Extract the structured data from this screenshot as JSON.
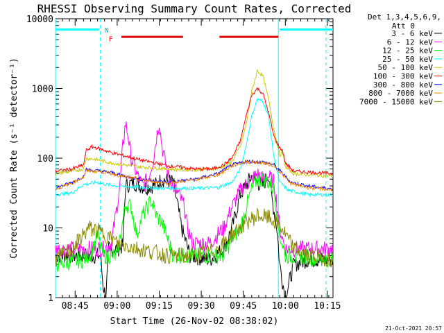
{
  "chart_data": {
    "type": "line",
    "title": "RHESSI Observing Summary Count Rates, Corrected",
    "xlabel": "Start Time (26-Nov-02 08:38:02)",
    "ylabel": "Corrected Count Rate (s⁻¹ detector⁻¹)",
    "yscale": "log",
    "ylim": [
      1,
      10000
    ],
    "xlim_minutes": [
      0,
      99
    ],
    "y_ticks": [
      {
        "value": 1,
        "label": "1"
      },
      {
        "value": 10,
        "label": "10"
      },
      {
        "value": 100,
        "label": "100"
      },
      {
        "value": 1000,
        "label": "1000"
      },
      {
        "value": 10000,
        "label": "10000"
      }
    ],
    "x_ticks": [
      {
        "minute": 7,
        "label": "08:45"
      },
      {
        "minute": 22,
        "label": "09:00"
      },
      {
        "minute": 37,
        "label": "09:15"
      },
      {
        "minute": 52,
        "label": "09:30"
      },
      {
        "minute": 67,
        "label": "09:45"
      },
      {
        "minute": 82,
        "label": "10:00"
      },
      {
        "minute": 97,
        "label": "10:15"
      }
    ],
    "legend_header": [
      "Det 1,3,4,5,6,9,",
      "Att 0"
    ],
    "legend_position": "right",
    "series": [
      {
        "name": "3 - 6 keV",
        "color": "#000000",
        "points": [
          [
            0,
            4
          ],
          [
            10,
            4
          ],
          [
            16,
            4
          ],
          [
            17,
            1.5
          ],
          [
            18,
            1
          ],
          [
            19,
            5
          ],
          [
            22,
            5
          ],
          [
            24,
            5.5
          ],
          [
            25,
            40
          ],
          [
            28,
            45
          ],
          [
            32,
            38
          ],
          [
            34,
            40
          ],
          [
            36,
            42
          ],
          [
            38,
            50
          ],
          [
            42,
            45
          ],
          [
            45,
            10
          ],
          [
            48,
            4
          ],
          [
            55,
            3.5
          ],
          [
            60,
            5
          ],
          [
            63,
            10
          ],
          [
            66,
            30
          ],
          [
            70,
            55
          ],
          [
            72,
            45
          ],
          [
            74,
            40
          ],
          [
            76,
            60
          ],
          [
            77,
            30
          ],
          [
            79,
            10
          ],
          [
            80,
            3
          ],
          [
            82,
            1
          ],
          [
            85,
            3
          ],
          [
            90,
            3.5
          ],
          [
            99,
            3.5
          ]
        ]
      },
      {
        "name": "6 - 12 keV",
        "color": "#ff00ff",
        "points": [
          [
            0,
            5
          ],
          [
            10,
            5
          ],
          [
            17,
            5
          ],
          [
            20,
            6
          ],
          [
            23,
            40
          ],
          [
            24,
            150
          ],
          [
            25,
            320
          ],
          [
            26,
            200
          ],
          [
            27,
            100
          ],
          [
            29,
            60
          ],
          [
            31,
            40
          ],
          [
            33,
            50
          ],
          [
            35,
            100
          ],
          [
            36,
            200
          ],
          [
            37,
            330
          ],
          [
            38,
            150
          ],
          [
            40,
            60
          ],
          [
            42,
            40
          ],
          [
            44,
            30
          ],
          [
            46,
            20
          ],
          [
            47,
            10
          ],
          [
            49,
            6
          ],
          [
            55,
            6
          ],
          [
            60,
            10
          ],
          [
            63,
            20
          ],
          [
            66,
            35
          ],
          [
            70,
            50
          ],
          [
            72,
            60
          ],
          [
            74,
            50
          ],
          [
            76,
            55
          ],
          [
            78,
            45
          ],
          [
            80,
            10
          ],
          [
            82,
            5
          ],
          [
            99,
            5
          ]
        ]
      },
      {
        "name": "12 - 25 keV",
        "color": "#00ff00",
        "points": [
          [
            0,
            3
          ],
          [
            10,
            3.5
          ],
          [
            13,
            4.5
          ],
          [
            15,
            8
          ],
          [
            17,
            4
          ],
          [
            19,
            4
          ],
          [
            22,
            4
          ],
          [
            25,
            22
          ],
          [
            27,
            20
          ],
          [
            29,
            8
          ],
          [
            31,
            15
          ],
          [
            33,
            20
          ],
          [
            34,
            25
          ],
          [
            35,
            20
          ],
          [
            36,
            15
          ],
          [
            38,
            12
          ],
          [
            40,
            7
          ],
          [
            42,
            4
          ],
          [
            48,
            4
          ],
          [
            55,
            4
          ],
          [
            60,
            4
          ],
          [
            63,
            7
          ],
          [
            66,
            10
          ],
          [
            68,
            20
          ],
          [
            70,
            35
          ],
          [
            72,
            50
          ],
          [
            74,
            50
          ],
          [
            76,
            45
          ],
          [
            78,
            35
          ],
          [
            80,
            8
          ],
          [
            82,
            4
          ],
          [
            99,
            3.5
          ]
        ]
      },
      {
        "name": "25 - 50 keV",
        "color": "#00ffff",
        "points": [
          [
            0,
            30
          ],
          [
            6,
            32
          ],
          [
            10,
            42
          ],
          [
            15,
            45
          ],
          [
            18,
            42
          ],
          [
            22,
            40
          ],
          [
            30,
            38
          ],
          [
            40,
            37
          ],
          [
            50,
            37
          ],
          [
            58,
            38
          ],
          [
            63,
            45
          ],
          [
            66,
            70
          ],
          [
            68,
            150
          ],
          [
            70,
            400
          ],
          [
            72,
            700
          ],
          [
            74,
            650
          ],
          [
            76,
            400
          ],
          [
            78,
            100
          ],
          [
            80,
            45
          ],
          [
            83,
            35
          ],
          [
            90,
            30
          ],
          [
            99,
            30
          ]
        ]
      },
      {
        "name": "50 - 100 keV",
        "color": "#c8c800",
        "points": [
          [
            0,
            60
          ],
          [
            6,
            65
          ],
          [
            10,
            70
          ],
          [
            11,
            100
          ],
          [
            15,
            95
          ],
          [
            20,
            85
          ],
          [
            30,
            75
          ],
          [
            40,
            70
          ],
          [
            50,
            68
          ],
          [
            56,
            70
          ],
          [
            60,
            75
          ],
          [
            63,
            90
          ],
          [
            66,
            150
          ],
          [
            68,
            300
          ],
          [
            70,
            900
          ],
          [
            72,
            1800
          ],
          [
            74,
            1500
          ],
          [
            76,
            700
          ],
          [
            78,
            250
          ],
          [
            80,
            110
          ],
          [
            81,
            120
          ],
          [
            82,
            75
          ],
          [
            85,
            60
          ],
          [
            99,
            55
          ]
        ]
      },
      {
        "name": "100 - 300 keV",
        "color": "#ff0000",
        "points": [
          [
            0,
            65
          ],
          [
            6,
            70
          ],
          [
            10,
            80
          ],
          [
            11,
            130
          ],
          [
            13,
            145
          ],
          [
            15,
            140
          ],
          [
            20,
            120
          ],
          [
            30,
            95
          ],
          [
            40,
            78
          ],
          [
            50,
            70
          ],
          [
            56,
            70
          ],
          [
            60,
            80
          ],
          [
            63,
            100
          ],
          [
            66,
            180
          ],
          [
            68,
            400
          ],
          [
            70,
            800
          ],
          [
            72,
            1000
          ],
          [
            74,
            850
          ],
          [
            76,
            450
          ],
          [
            78,
            200
          ],
          [
            80,
            140
          ],
          [
            81,
            130
          ],
          [
            82,
            85
          ],
          [
            85,
            65
          ],
          [
            99,
            60
          ]
        ]
      },
      {
        "name": "300 - 800 keV",
        "color": "#0000ff",
        "points": [
          [
            0,
            37
          ],
          [
            6,
            45
          ],
          [
            10,
            55
          ],
          [
            11,
            68
          ],
          [
            15,
            66
          ],
          [
            20,
            62
          ],
          [
            25,
            55
          ],
          [
            30,
            50
          ],
          [
            40,
            45
          ],
          [
            50,
            50
          ],
          [
            58,
            60
          ],
          [
            63,
            80
          ],
          [
            66,
            85
          ],
          [
            68,
            90
          ],
          [
            74,
            88
          ],
          [
            78,
            80
          ],
          [
            81,
            60
          ],
          [
            84,
            45
          ],
          [
            90,
            40
          ],
          [
            99,
            36
          ]
        ]
      },
      {
        "name": "800 - 7000 keV",
        "color": "#ff8800",
        "points": [
          [
            0,
            36
          ],
          [
            6,
            44
          ],
          [
            10,
            54
          ],
          [
            11,
            66
          ],
          [
            15,
            65
          ],
          [
            20,
            60
          ],
          [
            25,
            54
          ],
          [
            30,
            49
          ],
          [
            40,
            44
          ],
          [
            50,
            49
          ],
          [
            58,
            58
          ],
          [
            63,
            78
          ],
          [
            66,
            84
          ],
          [
            68,
            88
          ],
          [
            74,
            86
          ],
          [
            78,
            78
          ],
          [
            81,
            58
          ],
          [
            84,
            43
          ],
          [
            90,
            38
          ],
          [
            99,
            35
          ]
        ]
      },
      {
        "name": "7000 - 15000 keV",
        "color": "#888800",
        "points": [
          [
            0,
            3.5
          ],
          [
            6,
            5
          ],
          [
            10,
            8
          ],
          [
            12,
            10
          ],
          [
            15,
            9
          ],
          [
            18,
            8
          ],
          [
            22,
            6
          ],
          [
            30,
            5
          ],
          [
            40,
            4
          ],
          [
            50,
            4
          ],
          [
            58,
            5
          ],
          [
            63,
            8
          ],
          [
            68,
            12
          ],
          [
            72,
            15
          ],
          [
            76,
            14
          ],
          [
            80,
            11
          ],
          [
            85,
            5
          ],
          [
            90,
            4
          ],
          [
            99,
            3.5
          ]
        ]
      }
    ],
    "annotations": {
      "attenuator_bar": {
        "label": "",
        "color": "#00ffff",
        "y_value": 7000,
        "segments": [
          [
            0,
            15.5
          ],
          [
            80,
            99
          ]
        ]
      },
      "flag_bars": {
        "color": "#dd0000",
        "y_value": 5500,
        "segments": [
          [
            23.5,
            45.5
          ],
          [
            58.5,
            79.5
          ]
        ]
      },
      "N_label": "N",
      "F_label": "F",
      "dashed_lines_minutes": [
        16,
        96.5
      ],
      "solid_lines_minutes": [
        0,
        79.5
      ]
    },
    "footer_timestamp": "21-Oct-2021 20:57"
  }
}
